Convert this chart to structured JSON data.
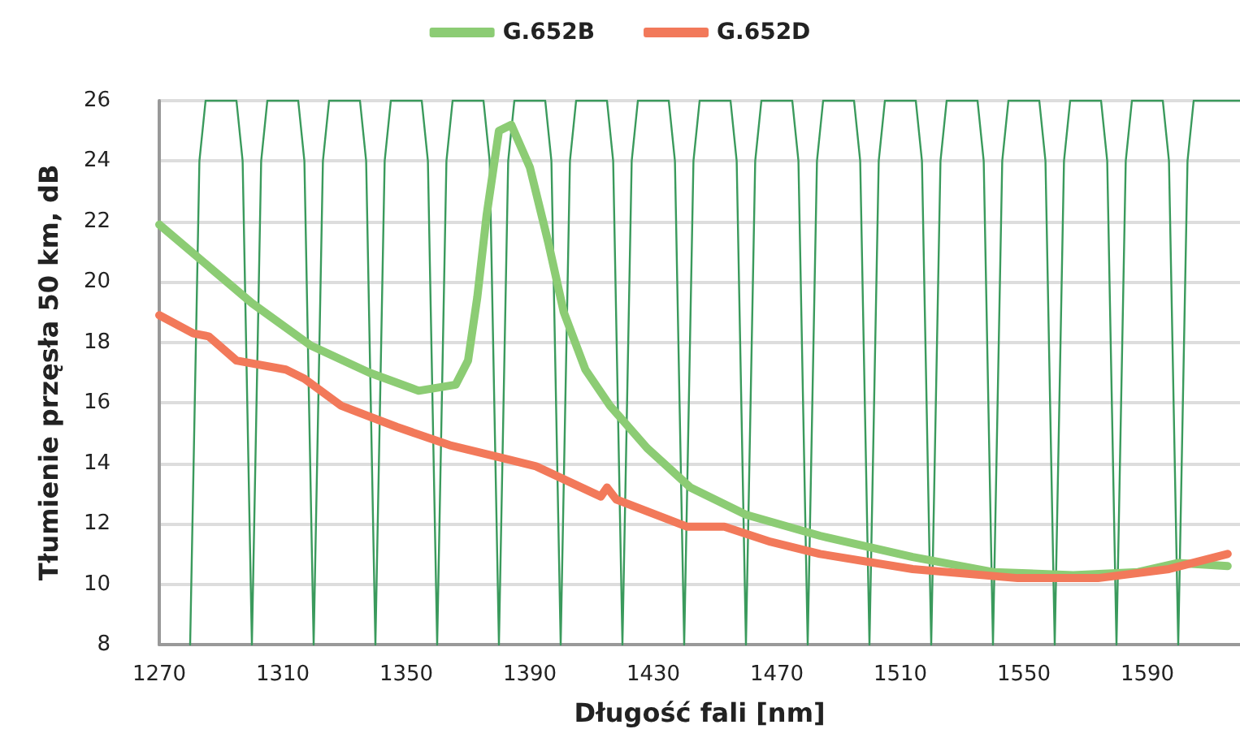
{
  "chart_data": {
    "type": "line",
    "xlabel": "Długość fali [nm]",
    "ylabel": "Tłumienie przęsła 50 km, dB",
    "xlim": [
      1270,
      1620
    ],
    "xticks": [
      1270,
      1310,
      1350,
      1390,
      1430,
      1470,
      1510,
      1550,
      1590
    ],
    "ylim": [
      8,
      26
    ],
    "yticks": [
      8,
      10,
      12,
      14,
      16,
      18,
      20,
      22,
      24,
      26
    ],
    "grid": "y",
    "legend": "top",
    "marker": "none",
    "line_style": "solid",
    "series": [
      {
        "color": "#3a9a5c",
        "x": [
          1280,
          1283,
          1285,
          1295,
          1297,
          1300,
          1303,
          1305,
          1315,
          1317,
          1320,
          1323,
          1325,
          1335,
          1337,
          1340,
          1343,
          1345,
          1355,
          1357,
          1360,
          1363,
          1365,
          1375,
          1377,
          1380,
          1383,
          1385,
          1395,
          1397,
          1400,
          1403,
          1405,
          1415,
          1417,
          1420,
          1423,
          1425,
          1435,
          1437,
          1440,
          1443,
          1445,
          1455,
          1457,
          1460,
          1463,
          1465,
          1475,
          1477,
          1480,
          1483,
          1485,
          1495,
          1497,
          1500,
          1503,
          1505,
          1515,
          1517,
          1520,
          1523,
          1525,
          1535,
          1537,
          1540,
          1543,
          1545,
          1555,
          1557,
          1560,
          1563,
          1565,
          1575,
          1577,
          1580,
          1583,
          1585,
          1595,
          1597,
          1600,
          1603,
          1605,
          1620
        ],
        "values": [
          8,
          24,
          26,
          26,
          24,
          8,
          24,
          26,
          26,
          24,
          8,
          24,
          26,
          26,
          24,
          8,
          24,
          26,
          26,
          24,
          8,
          24,
          26,
          26,
          24,
          8,
          24,
          26,
          26,
          24,
          8,
          24,
          26,
          26,
          24,
          8,
          24,
          26,
          26,
          24,
          8,
          24,
          26,
          26,
          24,
          8,
          24,
          26,
          26,
          24,
          8,
          24,
          26,
          26,
          24,
          8,
          24,
          26,
          26,
          24,
          8,
          24,
          26,
          26,
          24,
          8,
          24,
          26,
          26,
          24,
          8,
          24,
          26,
          26,
          24,
          8,
          24,
          26,
          26,
          24,
          8,
          24,
          26,
          26
        ]
      },
      {
        "name": "G.652B",
        "color": "#8ccc74",
        "x": [
          1270,
          1300,
          1319,
          1338,
          1354,
          1366,
          1370,
          1373,
          1376,
          1380,
          1384,
          1390,
          1396,
          1401,
          1408,
          1416,
          1428,
          1442,
          1460,
          1484,
          1514,
          1540,
          1566,
          1587,
          1600,
          1616
        ],
        "values": [
          21.9,
          19.3,
          17.9,
          17.0,
          16.4,
          16.6,
          17.4,
          19.5,
          22.2,
          25.0,
          25.2,
          23.8,
          21.3,
          19.0,
          17.1,
          15.9,
          14.5,
          13.2,
          12.3,
          11.6,
          10.9,
          10.4,
          10.3,
          10.4,
          10.7,
          10.6
        ]
      },
      {
        "name": "G.652D",
        "color": "#f2795a",
        "x": [
          1270,
          1281,
          1286,
          1295,
          1311,
          1317,
          1329,
          1347,
          1364,
          1380,
          1392,
          1413,
          1415,
          1418,
          1441,
          1453,
          1468,
          1484,
          1514,
          1548,
          1574,
          1597,
          1616
        ],
        "values": [
          18.9,
          18.3,
          18.2,
          17.4,
          17.1,
          16.8,
          15.9,
          15.2,
          14.6,
          14.2,
          13.9,
          12.9,
          13.2,
          12.8,
          11.9,
          11.9,
          11.4,
          11.0,
          10.5,
          10.2,
          10.2,
          10.5,
          11.0
        ]
      }
    ]
  }
}
